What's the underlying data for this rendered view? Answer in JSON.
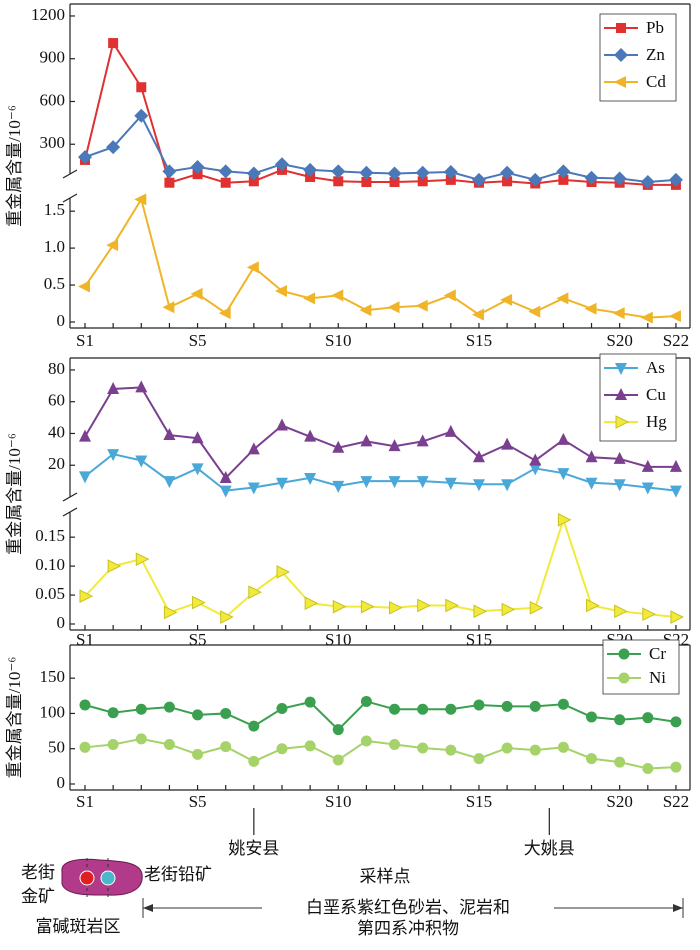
{
  "chart_data": [
    {
      "type": "line",
      "ylabel": "重金属含量/10⁻⁶",
      "legend": "upper right",
      "categories": [
        "S1",
        null,
        null,
        null,
        "S5",
        null,
        null,
        null,
        null,
        "S10",
        null,
        null,
        null,
        null,
        "S15",
        null,
        null,
        null,
        null,
        "S20",
        null,
        "S22"
      ],
      "panes": [
        {
          "ylim": [
            0,
            1270
          ],
          "yticks": [
            300,
            600,
            900,
            1200
          ],
          "series": [
            {
              "name": "Pb",
              "color": "#e03030",
              "marker": "square",
              "values": [
                190,
                1010,
                700,
                30,
                90,
                30,
                40,
                120,
                70,
                40,
                35,
                35,
                40,
                50,
                30,
                40,
                25,
                50,
                35,
                30,
                15,
                15
              ]
            },
            {
              "name": "Zn",
              "color": "#4a78b8",
              "marker": "diamond",
              "values": [
                210,
                280,
                500,
                110,
                140,
                110,
                95,
                160,
                120,
                110,
                100,
                95,
                100,
                105,
                50,
                100,
                50,
                110,
                65,
                60,
                35,
                50
              ]
            }
          ]
        },
        {
          "ylim": [
            0,
            1.8
          ],
          "yticks": [
            0,
            0.5,
            {
              "value": 1,
              "label": "1.0"
            },
            1.5
          ],
          "series": [
            {
              "name": "Cd",
              "color": "#f0b429",
              "marker": "triangle-left",
              "values": [
                0.48,
                1.04,
                1.66,
                0.2,
                0.38,
                0.12,
                0.74,
                0.42,
                0.32,
                0.36,
                0.16,
                0.2,
                0.22,
                0.36,
                0.1,
                0.3,
                0.14,
                0.32,
                0.18,
                0.12,
                0.06,
                0.08
              ]
            }
          ]
        }
      ]
    },
    {
      "type": "line",
      "ylabel": "重金属含量/10⁻⁶",
      "legend": "upper right",
      "categories": [
        "S1",
        null,
        null,
        null,
        "S5",
        null,
        null,
        null,
        null,
        "S10",
        null,
        null,
        null,
        null,
        "S15",
        null,
        null,
        null,
        null,
        "S20",
        null,
        "S22"
      ],
      "panes": [
        {
          "ylim": [
            0,
            85
          ],
          "yticks": [
            20,
            40,
            60,
            80
          ],
          "series": [
            {
              "name": "As",
              "color": "#4aa8d8",
              "marker": "triangle-down",
              "values": [
                13,
                27,
                23,
                10,
                18,
                4,
                6,
                9,
                12,
                7,
                10,
                10,
                10,
                9,
                8,
                8,
                18,
                15,
                9,
                8,
                6,
                4
              ]
            },
            {
              "name": "Cu",
              "color": "#7b3f8f",
              "marker": "triangle-up",
              "values": [
                38,
                68,
                69,
                39,
                37,
                12,
                30,
                45,
                38,
                31,
                35,
                32,
                35,
                41,
                25,
                33,
                23,
                36,
                25,
                24,
                19,
                19
              ]
            }
          ]
        },
        {
          "ylim": [
            0,
            0.19
          ],
          "yticks": [
            0,
            0.05,
            {
              "value": 0.1,
              "label": "0.10"
            },
            0.15
          ],
          "series": [
            {
              "name": "Hg",
              "color": "#f2ea3a",
              "marker": "triangle-right",
              "values": [
                0.048,
                0.1,
                0.112,
                0.02,
                0.037,
                0.012,
                0.055,
                0.09,
                0.036,
                0.03,
                0.03,
                0.028,
                0.032,
                0.032,
                0.022,
                0.025,
                0.028,
                0.18,
                0.032,
                0.022,
                0.017,
                0.012
              ]
            }
          ]
        }
      ]
    },
    {
      "type": "line",
      "ylabel": "重金属含量/10⁻⁶",
      "legend": "upper right",
      "xlabel": "采样点",
      "categories": [
        "S1",
        null,
        null,
        null,
        "S5",
        null,
        null,
        null,
        null,
        "S10",
        null,
        null,
        null,
        null,
        "S15",
        null,
        null,
        null,
        null,
        "S20",
        null,
        "S22"
      ],
      "annotations": [
        {
          "text": "姚安县",
          "x": 6
        },
        {
          "text": "大姚县",
          "x": 16.5
        }
      ],
      "panes": [
        {
          "ylim": [
            0,
            180
          ],
          "yticks": [
            0,
            50,
            100,
            150
          ],
          "series": [
            {
              "name": "Cr",
              "color": "#3aa050",
              "marker": "circle",
              "values": [
                112,
                101,
                106,
                109,
                98,
                100,
                82,
                107,
                116,
                77,
                117,
                106,
                106,
                106,
                112,
                110,
                110,
                113,
                95,
                91,
                94,
                88
              ]
            },
            {
              "name": "Ni",
              "color": "#a6d26a",
              "marker": "circle",
              "values": [
                52,
                56,
                64,
                56,
                42,
                53,
                32,
                50,
                54,
                34,
                61,
                56,
                51,
                48,
                36,
                51,
                48,
                52,
                36,
                31,
                22,
                24
              ]
            }
          ]
        }
      ]
    }
  ],
  "section": {
    "gold_mine": [
      "老街",
      "金矿"
    ],
    "lead_mine": "老街铅矿",
    "porphyry": "富碱斑岩区",
    "strata": [
      "白垩系紫红色砂岩、泥岩和",
      "第四系冲积物"
    ]
  }
}
